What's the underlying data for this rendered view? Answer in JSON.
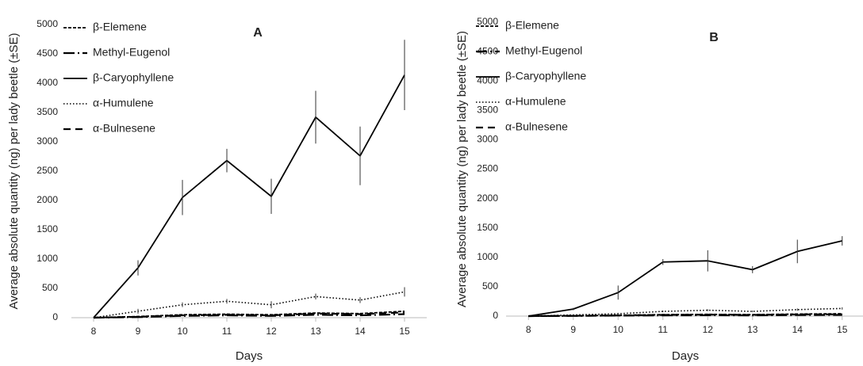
{
  "chart_data": [
    {
      "type": "line",
      "title": "A",
      "x_label": "Days",
      "y_label": "Average absolute quantity (ng) per lady beetle (±SE)",
      "categories": [
        "8",
        "9",
        "10",
        "11",
        "12",
        "13",
        "14",
        "15"
      ],
      "ylim": [
        0,
        5000
      ],
      "yticks": [
        0,
        500,
        1000,
        1500,
        2000,
        2500,
        3000,
        3500,
        4000,
        4500,
        5000
      ],
      "legend": "upper-left",
      "series": [
        {
          "name": "β-Elemene",
          "color": "#000000",
          "values": [
            0,
            20,
            50,
            60,
            50,
            80,
            70,
            110
          ]
        },
        {
          "name": "Methyl-Eugenol",
          "color": "#000000",
          "values": [
            0,
            10,
            30,
            40,
            30,
            50,
            40,
            60
          ]
        },
        {
          "name": "β-Caryophyllene",
          "color": "#000000",
          "values": [
            0,
            850,
            2050,
            2680,
            2070,
            3420,
            2760,
            4140
          ],
          "errors": [
            0,
            130,
            300,
            200,
            300,
            450,
            500,
            600
          ]
        },
        {
          "name": "α-Humulene",
          "color": "#000000",
          "values": [
            0,
            110,
            220,
            280,
            220,
            360,
            300,
            440
          ],
          "errors": [
            0,
            40,
            40,
            40,
            60,
            50,
            50,
            80
          ]
        },
        {
          "name": "α-Bulnesene",
          "color": "#000000",
          "values": [
            0,
            15,
            40,
            50,
            40,
            70,
            60,
            90
          ]
        }
      ]
    },
    {
      "type": "line",
      "title": "B",
      "x_label": "Days",
      "y_label": "Average absolute quantity (ng) per lady beetle (±SE)",
      "categories": [
        "8",
        "9",
        "10",
        "11",
        "12",
        "13",
        "14",
        "15"
      ],
      "ylim": [
        0,
        5000
      ],
      "yticks": [
        0,
        500,
        1000,
        1500,
        2000,
        2500,
        3000,
        3500,
        4000,
        4500,
        5000
      ],
      "legend": "upper-left",
      "series": [
        {
          "name": "β-Elemene",
          "color": "#000000",
          "values": [
            0,
            5,
            15,
            25,
            30,
            25,
            35,
            40
          ]
        },
        {
          "name": "Methyl-Eugenol",
          "color": "#000000",
          "values": [
            0,
            3,
            8,
            12,
            15,
            12,
            18,
            20
          ]
        },
        {
          "name": "β-Caryophyllene",
          "color": "#000000",
          "values": [
            0,
            120,
            400,
            920,
            940,
            790,
            1100,
            1280
          ],
          "errors": [
            0,
            20,
            120,
            50,
            180,
            60,
            200,
            80
          ]
        },
        {
          "name": "α-Humulene",
          "color": "#000000",
          "values": [
            0,
            20,
            40,
            80,
            100,
            80,
            110,
            130
          ],
          "errors": [
            0,
            10,
            15,
            15,
            15,
            15,
            20,
            20
          ]
        },
        {
          "name": "α-Bulnesene",
          "color": "#000000",
          "values": [
            0,
            5,
            10,
            20,
            25,
            20,
            28,
            30
          ]
        }
      ]
    }
  ]
}
